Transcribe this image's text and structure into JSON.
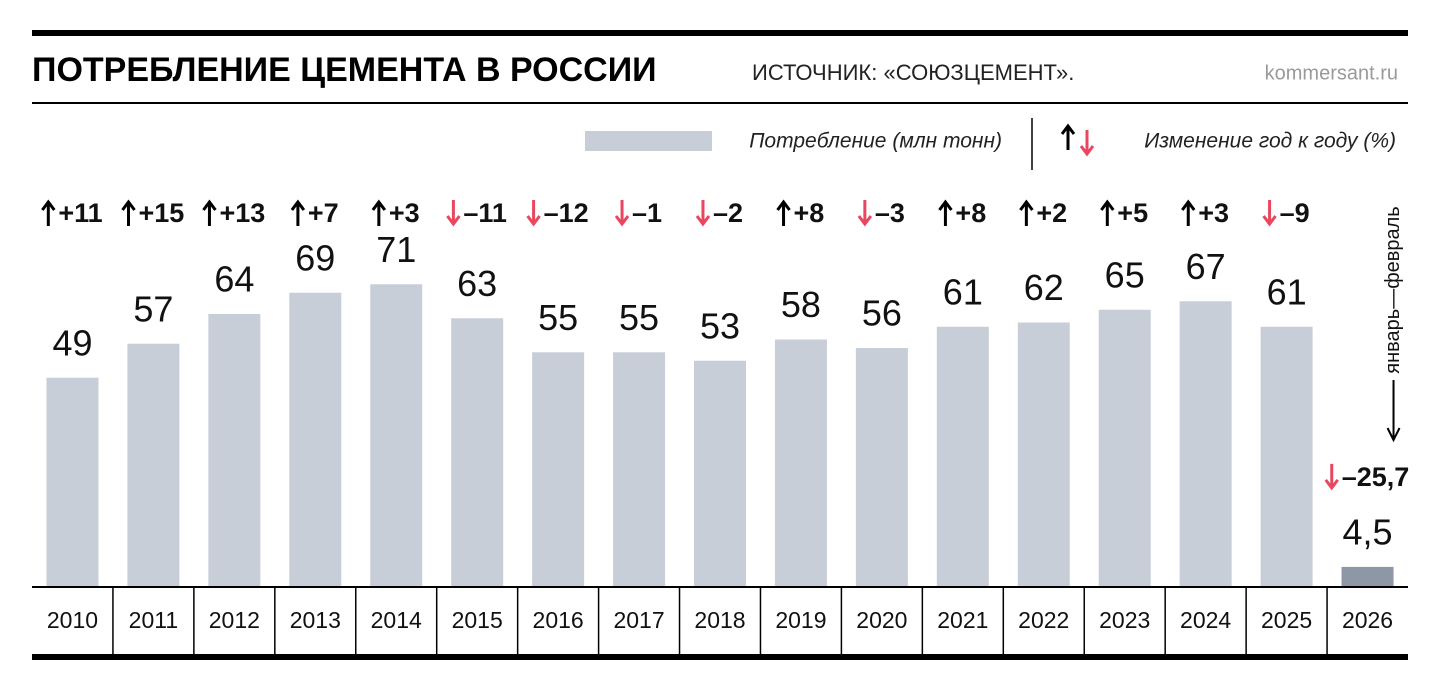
{
  "chart_data": {
    "type": "bar",
    "title": "ПОТРЕБЛЕНИЕ ЦЕМЕНТА В РОССИИ",
    "subtitle": "ИСТОЧНИК: «СОЮЗЦЕМЕНТ».",
    "credit": "kommersant.ru",
    "annotation": "январь—февраль",
    "categories": [
      "2010",
      "2011",
      "2012",
      "2013",
      "2014",
      "2015",
      "2016",
      "2017",
      "2018",
      "2019",
      "2020",
      "2021",
      "2022",
      "2023",
      "2024",
      "2025",
      "2026"
    ],
    "highlight_color": "#8d97a6",
    "up_color": "#000000",
    "down_color": "#e8475f",
    "series": [
      {
        "name": "Потребление (млн тонн)",
        "color": "#c8ced8",
        "values": [
          49,
          57,
          64,
          69,
          71,
          63,
          55,
          55,
          53,
          58,
          56,
          61,
          62,
          65,
          67,
          61,
          4.5
        ],
        "value_labels": [
          "49",
          "57",
          "64",
          "69",
          "71",
          "63",
          "55",
          "55",
          "53",
          "58",
          "56",
          "61",
          "62",
          "65",
          "67",
          "61",
          "4,5"
        ]
      },
      {
        "name": "Изменение год к году (%)",
        "values": [
          11,
          15,
          13,
          7,
          3,
          -11,
          -12,
          -1,
          -2,
          8,
          -3,
          8,
          2,
          5,
          3,
          -9,
          -25.7
        ],
        "value_labels": [
          "+11",
          "+15",
          "+13",
          "+7",
          "+3",
          "–11",
          "–12",
          "–1",
          "–2",
          "+8",
          "–3",
          "+8",
          "+2",
          "+5",
          "+3",
          "–9",
          "–25,7"
        ]
      }
    ]
  }
}
